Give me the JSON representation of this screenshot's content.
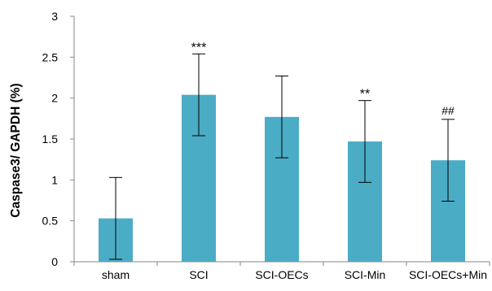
{
  "chart_data": {
    "type": "bar",
    "categories": [
      "sham",
      "SCI",
      "SCI-OECs",
      "SCI-Min",
      "SCI-OECs+Min"
    ],
    "values": [
      0.53,
      2.04,
      1.77,
      1.47,
      1.24
    ],
    "errors": [
      0.5,
      0.5,
      0.5,
      0.5,
      0.5
    ],
    "annotations": [
      "",
      "***",
      "",
      "**",
      "##"
    ],
    "ylabel": "Caspase3/ GAPDH (%)",
    "xlabel": "",
    "ylim": [
      0,
      3
    ],
    "yticks": [
      0,
      0.5,
      1,
      1.5,
      2,
      2.5,
      3
    ],
    "ytick_labels": [
      "0",
      "0.5",
      "1",
      "1.5",
      "2",
      "2.5",
      "3"
    ],
    "grid": false,
    "bar_color": "#4BACC6",
    "axis_color": "#868686"
  }
}
